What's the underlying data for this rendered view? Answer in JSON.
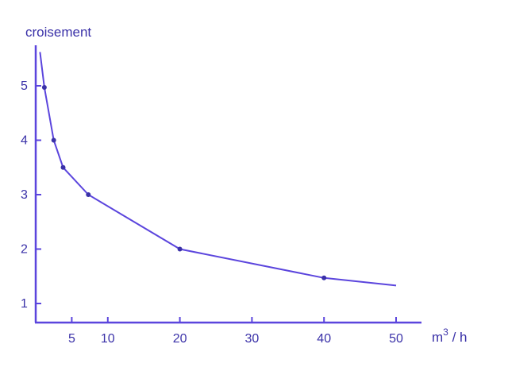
{
  "chart_data": {
    "type": "line",
    "title": "",
    "ylabel": "croisement",
    "xlabel_base": "m",
    "xlabel_sup": "3",
    "xlabel_rest": " / h",
    "xlim": [
      0,
      53
    ],
    "ylim": [
      0.75,
      5.7
    ],
    "xticks": [
      5,
      10,
      20,
      30,
      40,
      50
    ],
    "yticks": [
      1,
      2,
      3,
      4,
      5
    ],
    "grid": false,
    "series": [
      {
        "color": "#5b45dd",
        "line": [
          {
            "x": 0.6,
            "y": 5.62
          },
          {
            "x": 1.2,
            "y": 4.97
          },
          {
            "x": 2.5,
            "y": 4.0
          },
          {
            "x": 3.8,
            "y": 3.5
          },
          {
            "x": 7.3,
            "y": 3.0
          },
          {
            "x": 20,
            "y": 2.0
          },
          {
            "x": 40,
            "y": 1.47
          },
          {
            "x": 50,
            "y": 1.33
          }
        ],
        "markers": [
          {
            "x": 1.2,
            "y": 4.97
          },
          {
            "x": 2.5,
            "y": 4.0
          },
          {
            "x": 3.8,
            "y": 3.5
          },
          {
            "x": 7.3,
            "y": 3.0
          },
          {
            "x": 20,
            "y": 2.0
          },
          {
            "x": 40,
            "y": 1.47
          }
        ]
      }
    ]
  }
}
